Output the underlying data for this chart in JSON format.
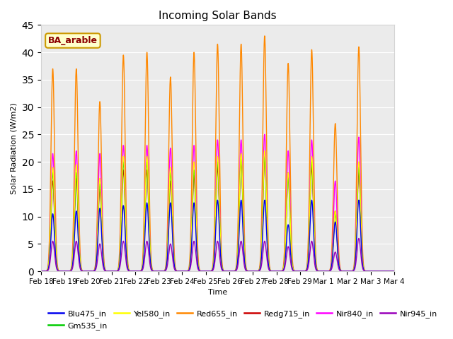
{
  "title": "Incoming Solar Bands",
  "xlabel": "Time",
  "ylabel": "Solar Radiation (W/m2)",
  "ylim": [
    0,
    45
  ],
  "annotation": "BA_arable",
  "plot_bg_color": "#ebebeb",
  "series_colors": {
    "Blu475_in": "#0000ee",
    "Gm535_in": "#00cc00",
    "Yel580_in": "#ffff00",
    "Red655_in": "#ff8800",
    "Redg715_in": "#cc0000",
    "Nir840_in": "#ff00ff",
    "Nir945_in": "#9900bb"
  },
  "days": [
    "Feb 18",
    "Feb 19",
    "Feb 20",
    "Feb 21",
    "Feb 22",
    "Feb 23",
    "Feb 24",
    "Feb 25",
    "Feb 26",
    "Feb 27",
    "Feb 28",
    "Feb 29",
    "Mar 1",
    "Mar 2",
    "Mar 3",
    "Mar 4"
  ],
  "n_days": 15,
  "day_peaks": {
    "Red655_in": [
      37.0,
      37.0,
      31.0,
      39.5,
      40.0,
      35.5,
      40.0,
      41.5,
      41.5,
      43.0,
      38.0,
      40.5,
      27.0,
      41.0,
      0.0
    ],
    "Redg715_in": [
      16.5,
      17.0,
      15.0,
      18.5,
      18.5,
      16.5,
      17.5,
      19.0,
      20.0,
      20.5,
      18.0,
      19.0,
      11.0,
      18.0,
      0.0
    ],
    "Nir840_in": [
      21.5,
      22.0,
      21.5,
      23.0,
      23.0,
      22.5,
      23.0,
      24.0,
      24.0,
      25.0,
      22.0,
      24.0,
      16.5,
      24.5,
      0.0
    ],
    "Blu475_in": [
      10.5,
      11.0,
      11.5,
      12.0,
      12.5,
      12.5,
      12.5,
      13.0,
      13.0,
      13.0,
      8.5,
      13.0,
      9.0,
      13.0,
      0.0
    ],
    "Gm535_in": [
      18.0,
      18.0,
      16.0,
      20.0,
      20.0,
      18.0,
      18.5,
      20.0,
      20.5,
      21.0,
      17.0,
      20.0,
      10.5,
      19.0,
      0.0
    ],
    "Yel580_in": [
      19.0,
      19.5,
      17.0,
      21.0,
      21.0,
      19.0,
      20.0,
      21.0,
      21.5,
      22.0,
      18.0,
      21.0,
      11.0,
      20.0,
      0.0
    ],
    "Nir945_in": [
      5.5,
      5.5,
      5.0,
      5.5,
      5.5,
      5.0,
      5.5,
      5.5,
      5.5,
      5.5,
      4.5,
      5.5,
      3.5,
      6.0,
      0.0
    ]
  },
  "peak_hour": 12.0,
  "sigma_hours": 1.8,
  "pts_per_day": 500,
  "legend_order": [
    "Blu475_in",
    "Gm535_in",
    "Yel580_in",
    "Red655_in",
    "Redg715_in",
    "Nir840_in",
    "Nir945_in"
  ],
  "plot_order": [
    "Red655_in",
    "Nir840_in",
    "Redg715_in",
    "Gm535_in",
    "Yel580_in",
    "Blu475_in",
    "Nir945_in"
  ]
}
